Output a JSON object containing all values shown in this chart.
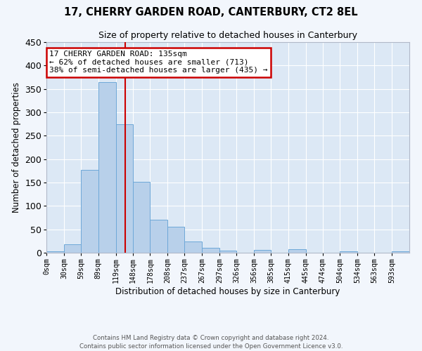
{
  "title": "17, CHERRY GARDEN ROAD, CANTERBURY, CT2 8EL",
  "subtitle": "Size of property relative to detached houses in Canterbury",
  "xlabel": "Distribution of detached houses by size in Canterbury",
  "ylabel": "Number of detached properties",
  "bar_color": "#b8d0ea",
  "bar_edge_color": "#6ea8d8",
  "background_color": "#dce8f5",
  "grid_color": "#ffffff",
  "bin_labels": [
    "0sqm",
    "30sqm",
    "59sqm",
    "89sqm",
    "119sqm",
    "148sqm",
    "178sqm",
    "208sqm",
    "237sqm",
    "267sqm",
    "297sqm",
    "326sqm",
    "356sqm",
    "385sqm",
    "415sqm",
    "445sqm",
    "474sqm",
    "504sqm",
    "534sqm",
    "563sqm",
    "593sqm"
  ],
  "bar_heights": [
    3,
    18,
    177,
    365,
    274,
    151,
    70,
    55,
    24,
    10,
    5,
    0,
    6,
    0,
    8,
    0,
    0,
    3,
    0,
    0,
    3
  ],
  "vline_x": 135,
  "annotation_title": "17 CHERRY GARDEN ROAD: 135sqm",
  "annotation_line1": "← 62% of detached houses are smaller (713)",
  "annotation_line2": "38% of semi-detached houses are larger (435) →",
  "vline_color": "#cc0000",
  "annotation_box_facecolor": "#ffffff",
  "annotation_border_color": "#cc0000",
  "ylim": [
    0,
    450
  ],
  "yticks": [
    0,
    50,
    100,
    150,
    200,
    250,
    300,
    350,
    400,
    450
  ],
  "footer_line1": "Contains HM Land Registry data © Crown copyright and database right 2024.",
  "footer_line2": "Contains public sector information licensed under the Open Government Licence v3.0.",
  "fig_facecolor": "#f2f6fc"
}
